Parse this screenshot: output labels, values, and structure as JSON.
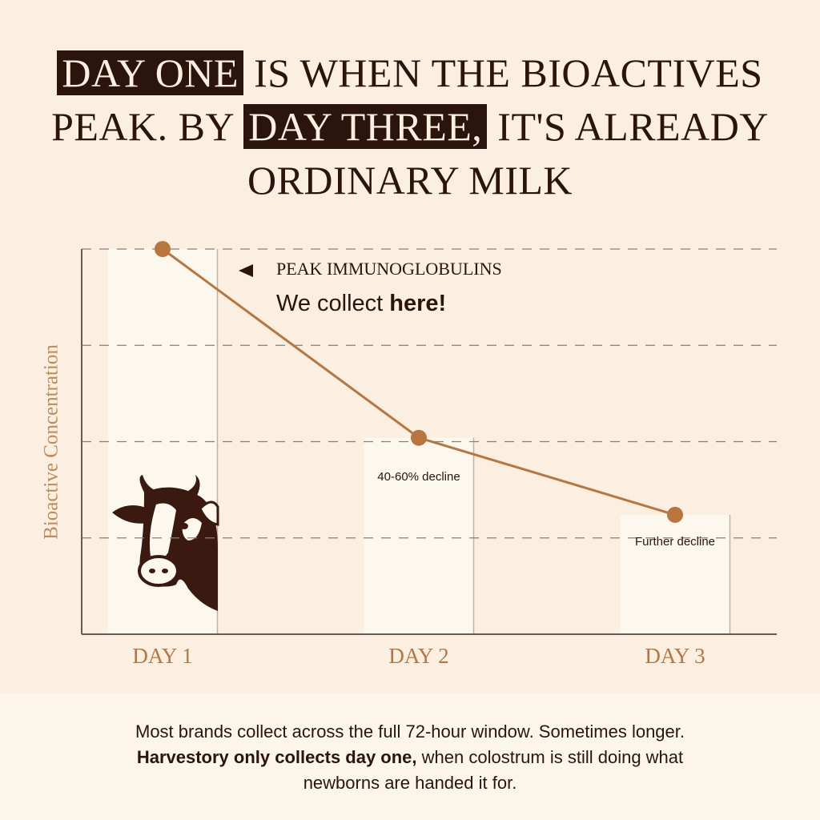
{
  "chart_data": {
    "type": "line",
    "title": [
      [
        {
          "text": "DAY ONE",
          "highlight": true
        },
        {
          "text": " IS WHEN THE BIOACTIVES"
        }
      ],
      [
        {
          "text": "PEAK. BY "
        },
        {
          "text": "DAY THREE,",
          "highlight": true
        },
        {
          "text": " IT'S ALREADY"
        }
      ],
      [
        {
          "text": "ORDINARY MILK"
        }
      ]
    ],
    "y_label": "Bioactive Concentration",
    "categories": [
      "DAY 1",
      "DAY 2",
      "DAY 3"
    ],
    "series": [
      {
        "color": "#b8763e",
        "values": [
          100,
          51,
          31
        ]
      }
    ],
    "bar_color": "#fdf8ee",
    "ylim": [
      0,
      100
    ],
    "yticks": [
      25,
      50,
      75,
      100
    ],
    "grid": true,
    "annotations": {
      "peak_label": "PEAK IMMUNOGLOBULINS",
      "collect": "We collect",
      "collect_bold": "here!",
      "day2_note": "40-60% decline",
      "day3_note": "Further decline"
    }
  },
  "footer": [
    [
      {
        "text": "Most brands collect across the full 72-hour window. Sometimes longer."
      }
    ],
    [
      {
        "text": "Harvestory only collects day one,",
        "bold": true
      },
      {
        "text": " when colostrum is still doing what"
      }
    ],
    [
      {
        "text": "newborns are handed it for."
      }
    ]
  ]
}
